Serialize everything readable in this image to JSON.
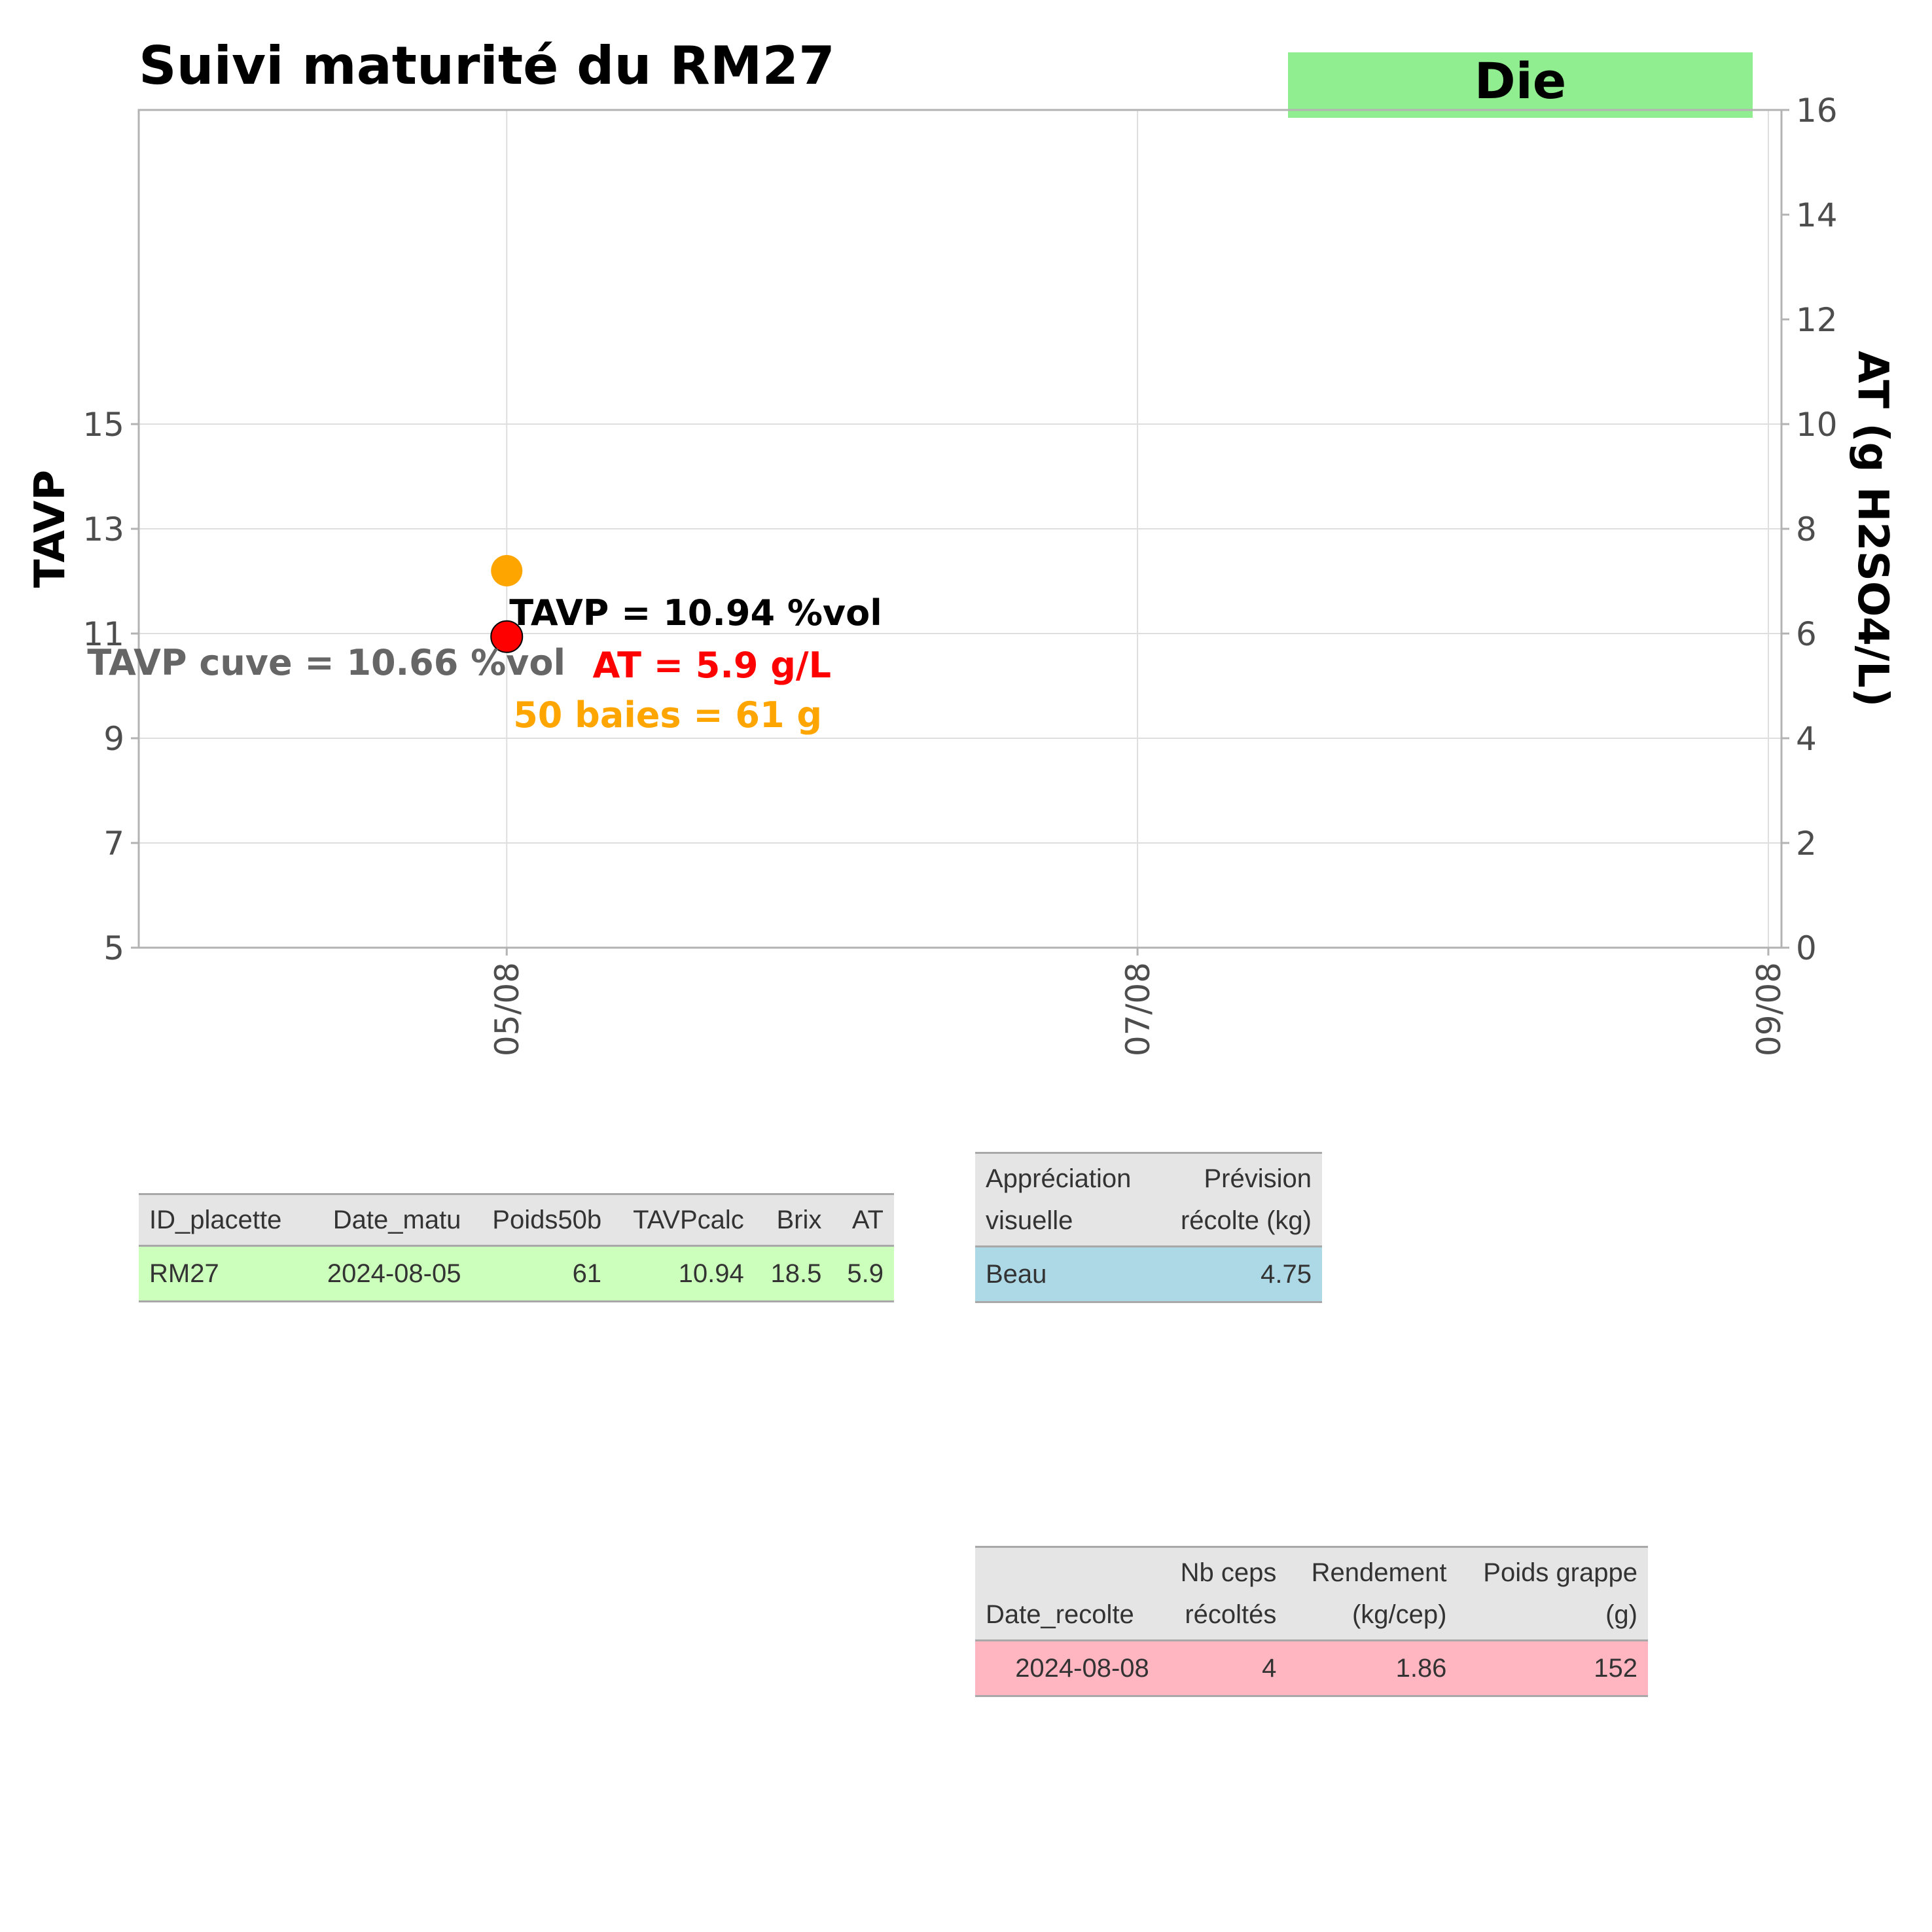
{
  "chart_data": {
    "type": "scatter",
    "title": "Suivi maturité du  RM27",
    "badge": {
      "text": "Die",
      "color": "#90ee90"
    },
    "ylabel": "TAVP",
    "y2label": "AT (g H2SO4/L)",
    "x_ticks": [
      "05/08",
      "07/08",
      "09/08"
    ],
    "x_tick_dates": [
      "2024-08-05",
      "2024-08-07",
      "2024-08-09"
    ],
    "xlim": [
      "2024-08-03 20:00",
      "2024-08-09 01:00"
    ],
    "ylim": [
      5,
      21
    ],
    "y_ticks": [
      5,
      7,
      9,
      11,
      13,
      15
    ],
    "y2lim": [
      0,
      16
    ],
    "y2_ticks": [
      0,
      2,
      4,
      6,
      8,
      10,
      12,
      14,
      16
    ],
    "grid": true,
    "series": [
      {
        "color": "#ffa500",
        "points": [
          {
            "x": "2024-08-05",
            "y": 12.2
          }
        ]
      },
      {
        "color": "#ff0000",
        "points": [
          {
            "x": "2024-08-05",
            "y": 10.94,
            "y2": 5.9
          }
        ]
      }
    ],
    "annotations": [
      {
        "text": "TAVP = 10.94 %vol",
        "color": "#000000"
      },
      {
        "text": "AT = 5.9 g/L",
        "color": "#ff0000"
      },
      {
        "text": "50 baies = 61 g",
        "color": "#ffa500"
      },
      {
        "text": "TAVP cuve = 10.66 %vol",
        "color": "#666666"
      }
    ]
  },
  "table_matu": {
    "headers": [
      "ID_placette",
      "Date_matu",
      "Poids50b",
      "TAVPcalc",
      "Brix",
      "AT"
    ],
    "row": [
      "RM27",
      "2024-08-05",
      "61",
      "10.94",
      "18.5",
      "5.9"
    ]
  },
  "table_appr": {
    "headers": [
      [
        "Appréciation",
        "visuelle"
      ],
      [
        "Prévision",
        "récolte (kg)"
      ]
    ],
    "row": [
      "Beau",
      "4.75"
    ]
  },
  "table_recolte": {
    "headers": [
      [
        "",
        "Date_recolte"
      ],
      [
        "Nb ceps",
        "récoltés"
      ],
      [
        "Rendement",
        "(kg/cep)"
      ],
      [
        "Poids grappe",
        "(g)"
      ]
    ],
    "row": [
      "2024-08-08",
      "4",
      "1.86",
      "152"
    ]
  }
}
